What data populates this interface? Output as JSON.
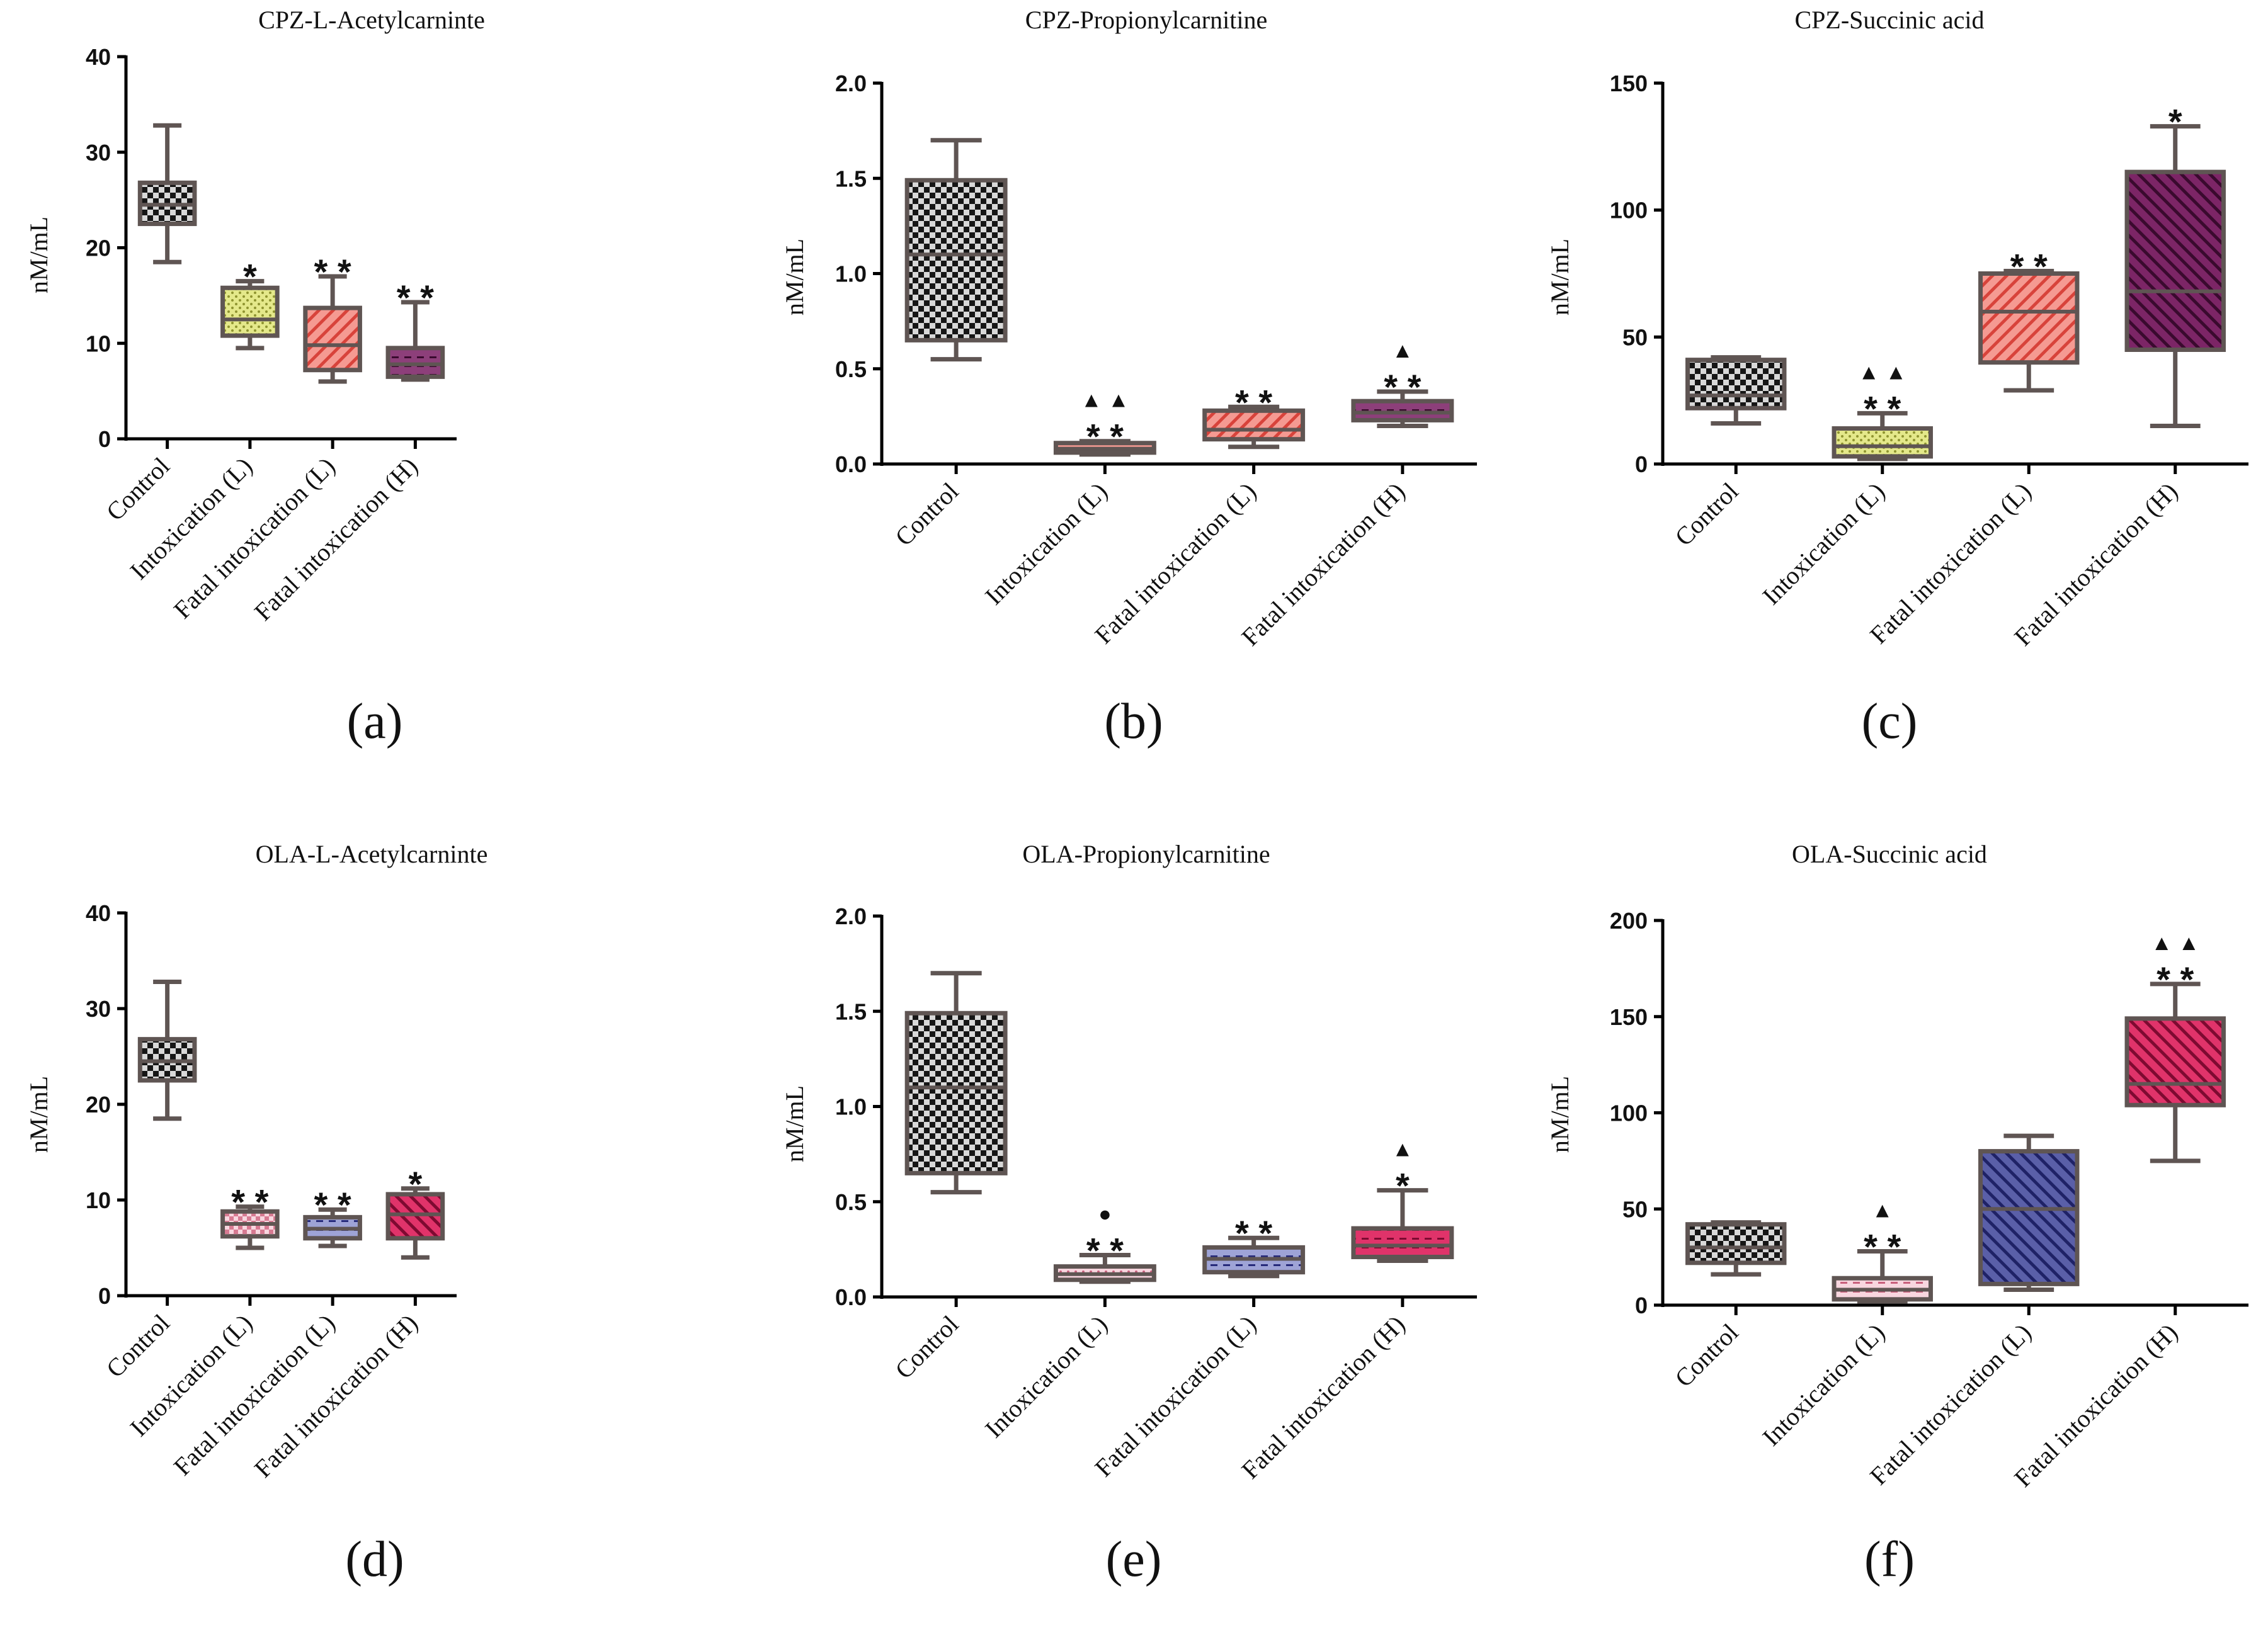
{
  "colors": {
    "axis": "#000000",
    "box_stroke": "#5f5553",
    "black": "#161616",
    "yellow": "#dde278",
    "salmon": "#f07a70",
    "purple": "#6b1a55",
    "pink": "#f4b8c8",
    "navy": "#3a3f8c",
    "crimson": "#c0184c"
  },
  "panels": [
    {
      "panel_label": "(a)",
      "chart_data": {
        "type": "box",
        "title": "CPZ-L-Acetylcarninte",
        "ylabel": "nM/mL",
        "ylim": [
          0,
          40
        ],
        "yticks": [
          0,
          10,
          20,
          30,
          40
        ],
        "ytick_labels": [
          "0",
          "10",
          "20",
          "30",
          "40"
        ],
        "categories": [
          "Control",
          "Intoxication (L)",
          "Fatal intoxication (L)",
          "Fatal intoxication (H)"
        ],
        "boxes": [
          {
            "min": 18.5,
            "q1": 22.5,
            "median": 24.5,
            "q3": 26.8,
            "max": 32.8,
            "fill": "black",
            "pattern": "checker",
            "annotations": []
          },
          {
            "min": 9.5,
            "q1": 10.8,
            "median": 12.5,
            "q3": 15.8,
            "max": 16.5,
            "fill": "yellow",
            "pattern": "dots",
            "annotations": [
              "*"
            ]
          },
          {
            "min": 6.0,
            "q1": 7.2,
            "median": 9.8,
            "q3": 13.7,
            "max": 17.0,
            "fill": "salmon",
            "pattern": "diagonal",
            "annotations": [
              "* *"
            ]
          },
          {
            "min": 6.2,
            "q1": 6.5,
            "median": 7.8,
            "q3": 9.5,
            "max": 14.3,
            "fill": "purple",
            "pattern": "dashes",
            "annotations": [
              "* *"
            ]
          }
        ]
      }
    },
    {
      "panel_label": "(b)",
      "chart_data": {
        "type": "box",
        "title": "CPZ-Propionylcarnitine",
        "ylabel": "nM/mL",
        "ylim": [
          0,
          2.0
        ],
        "yticks": [
          0,
          0.5,
          1.0,
          1.5,
          2.0
        ],
        "ytick_labels": [
          "0.0",
          "0.5",
          "1.0",
          "1.5",
          "2.0"
        ],
        "categories": [
          "Control",
          "Intoxication (L)",
          "Fatal intoxication (L)",
          "Fatal intoxication (H)"
        ],
        "boxes": [
          {
            "min": 0.55,
            "q1": 0.65,
            "median": 1.1,
            "q3": 1.49,
            "max": 1.7,
            "fill": "black",
            "pattern": "checker",
            "annotations": []
          },
          {
            "min": 0.05,
            "q1": 0.06,
            "median": 0.08,
            "q3": 0.11,
            "max": 0.12,
            "fill": "salmon",
            "pattern": "dots",
            "annotations": [
              "* *",
              "▲ ▲"
            ]
          },
          {
            "min": 0.09,
            "q1": 0.13,
            "median": 0.18,
            "q3": 0.28,
            "max": 0.3,
            "fill": "salmon",
            "pattern": "diagonal",
            "annotations": [
              "* *"
            ]
          },
          {
            "min": 0.2,
            "q1": 0.23,
            "median": 0.27,
            "q3": 0.33,
            "max": 0.38,
            "fill": "purple",
            "pattern": "dashes",
            "annotations": [
              "* *",
              "▲"
            ]
          }
        ]
      }
    },
    {
      "panel_label": "(c)",
      "chart_data": {
        "type": "box",
        "title": "CPZ-Succinic acid",
        "ylabel": "nM/mL",
        "ylim": [
          0,
          150
        ],
        "yticks": [
          0,
          50,
          100,
          150
        ],
        "ytick_labels": [
          "0",
          "50",
          "100",
          "150"
        ],
        "categories": [
          "Control",
          "Intoxication (L)",
          "Fatal intoxication (L)",
          "Fatal intoxication (H)"
        ],
        "boxes": [
          {
            "min": 16,
            "q1": 22,
            "median": 27,
            "q3": 41,
            "max": 42,
            "fill": "black",
            "pattern": "checker",
            "annotations": []
          },
          {
            "min": 2,
            "q1": 3,
            "median": 7,
            "q3": 14,
            "max": 20,
            "fill": "yellow",
            "pattern": "dots",
            "annotations": [
              "* *",
              "▲ ▲"
            ]
          },
          {
            "min": 29,
            "q1": 40,
            "median": 60,
            "q3": 75,
            "max": 76,
            "fill": "salmon",
            "pattern": "diagonal",
            "annotations": [
              "* *"
            ]
          },
          {
            "min": 15,
            "q1": 45,
            "median": 68,
            "q3": 115,
            "max": 133,
            "fill": "purple",
            "pattern": "diagonal",
            "annotations": [
              "*"
            ]
          }
        ]
      }
    },
    {
      "panel_label": "(d)",
      "chart_data": {
        "type": "box",
        "title": "OLA-L-Acetylcarninte",
        "ylabel": "nM/mL",
        "ylim": [
          0,
          40
        ],
        "yticks": [
          0,
          10,
          20,
          30,
          40
        ],
        "ytick_labels": [
          "0",
          "10",
          "20",
          "30",
          "40"
        ],
        "categories": [
          "Control",
          "Intoxication (L)",
          "Fatal intoxication (L)",
          "Fatal intoxication (H)"
        ],
        "boxes": [
          {
            "min": 18.5,
            "q1": 22.5,
            "median": 24.5,
            "q3": 26.8,
            "max": 32.8,
            "fill": "black",
            "pattern": "checker",
            "annotations": []
          },
          {
            "min": 5.0,
            "q1": 6.2,
            "median": 7.5,
            "q3": 8.8,
            "max": 9.3,
            "fill": "pink",
            "pattern": "checker",
            "annotations": [
              "* *"
            ]
          },
          {
            "min": 5.2,
            "q1": 6.0,
            "median": 7.0,
            "q3": 8.2,
            "max": 9.0,
            "fill": "navy",
            "pattern": "dashes",
            "annotations": [
              "* *"
            ]
          },
          {
            "min": 4.0,
            "q1": 6.0,
            "median": 8.5,
            "q3": 10.6,
            "max": 11.2,
            "fill": "crimson",
            "pattern": "diagonal",
            "annotations": [
              "*"
            ]
          }
        ]
      }
    },
    {
      "panel_label": "(e)",
      "chart_data": {
        "type": "box",
        "title": "OLA-Propionylcarnitine",
        "ylabel": "nM/mL",
        "ylim": [
          0,
          2.0
        ],
        "yticks": [
          0,
          0.5,
          1.0,
          1.5,
          2.0
        ],
        "ytick_labels": [
          "0.0",
          "0.5",
          "1.0",
          "1.5",
          "2.0"
        ],
        "categories": [
          "Control",
          "Intoxication (L)",
          "Fatal intoxication (L)",
          "Fatal intoxication (H)"
        ],
        "boxes": [
          {
            "min": 0.55,
            "q1": 0.65,
            "median": 1.1,
            "q3": 1.49,
            "max": 1.7,
            "fill": "black",
            "pattern": "checker",
            "annotations": []
          },
          {
            "min": 0.08,
            "q1": 0.09,
            "median": 0.12,
            "q3": 0.16,
            "max": 0.22,
            "fill": "pink",
            "pattern": "dots",
            "annotations": [
              "* *",
              "●"
            ]
          },
          {
            "min": 0.11,
            "q1": 0.13,
            "median": 0.2,
            "q3": 0.26,
            "max": 0.31,
            "fill": "navy",
            "pattern": "dashes",
            "annotations": [
              "* *"
            ]
          },
          {
            "min": 0.19,
            "q1": 0.21,
            "median": 0.27,
            "q3": 0.36,
            "max": 0.56,
            "fill": "crimson",
            "pattern": "dashes",
            "annotations": [
              "*",
              "▲"
            ]
          }
        ]
      }
    },
    {
      "panel_label": "(f)",
      "chart_data": {
        "type": "box",
        "title": "OLA-Succinic acid",
        "ylabel": "nM/mL",
        "ylim": [
          0,
          200
        ],
        "yticks": [
          0,
          50,
          100,
          150,
          200
        ],
        "ytick_labels": [
          "0",
          "50",
          "100",
          "150",
          "200"
        ],
        "categories": [
          "Control",
          "Intoxication (L)",
          "Fatal intoxication (L)",
          "Fatal intoxication (H)"
        ],
        "boxes": [
          {
            "min": 16,
            "q1": 22,
            "median": 30,
            "q3": 42,
            "max": 43,
            "fill": "black",
            "pattern": "checker",
            "annotations": []
          },
          {
            "min": 2,
            "q1": 3,
            "median": 8,
            "q3": 14,
            "max": 28,
            "fill": "pink",
            "pattern": "dashes",
            "annotations": [
              "* *",
              "▲"
            ]
          },
          {
            "min": 8,
            "q1": 11,
            "median": 50,
            "q3": 80,
            "max": 88,
            "fill": "navy",
            "pattern": "diagonal",
            "annotations": []
          },
          {
            "min": 75,
            "q1": 104,
            "median": 115,
            "q3": 149,
            "max": 167,
            "fill": "crimson",
            "pattern": "diagonal",
            "annotations": [
              "* *",
              "▲ ▲"
            ]
          }
        ]
      }
    }
  ]
}
